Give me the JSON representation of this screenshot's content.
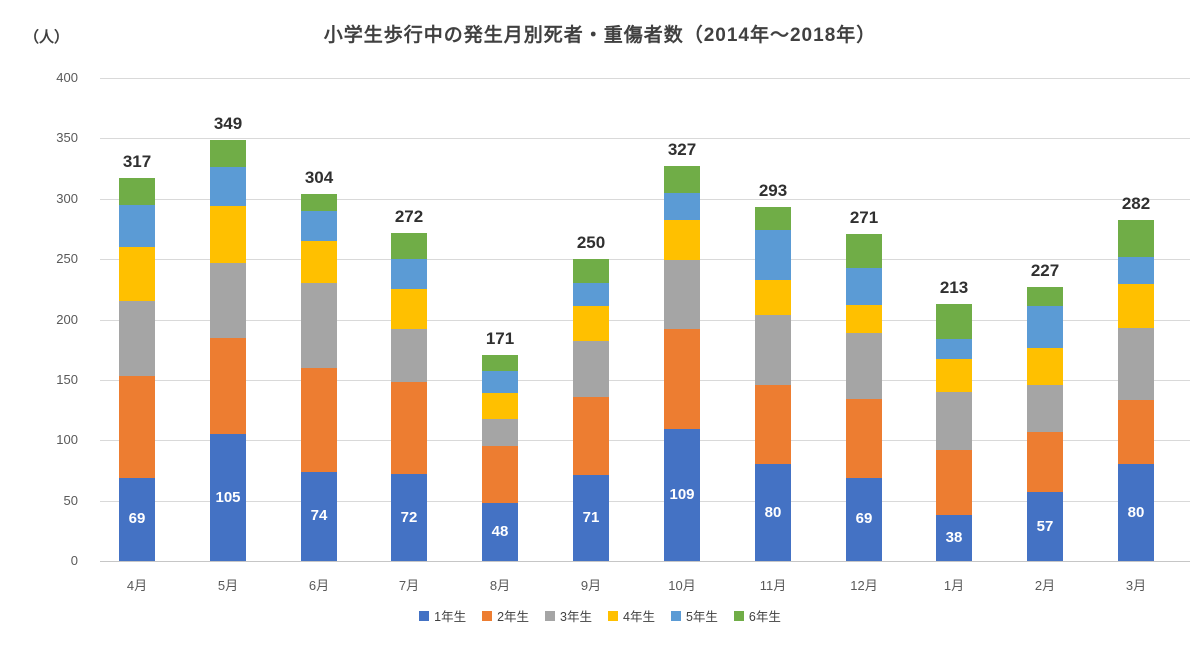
{
  "chart_data": {
    "type": "bar",
    "stacked": true,
    "title": "小学生歩行中の発生月別死者・重傷者数（2014年～2018年）",
    "unit_label": "（人）",
    "categories": [
      "4月",
      "5月",
      "6月",
      "7月",
      "8月",
      "9月",
      "10月",
      "11月",
      "12月",
      "1月",
      "2月",
      "3月"
    ],
    "totals": [
      317,
      349,
      304,
      272,
      171,
      250,
      327,
      293,
      271,
      213,
      227,
      282
    ],
    "series": [
      {
        "name": "1年生",
        "color": "#4472C4",
        "values": [
          69,
          105,
          74,
          72,
          48,
          71,
          109,
          80,
          69,
          38,
          57,
          80
        ]
      },
      {
        "name": "2年生",
        "color": "#ED7D31",
        "values": [
          84,
          80,
          86,
          76,
          47,
          65,
          83,
          66,
          65,
          54,
          50,
          53
        ]
      },
      {
        "name": "3年生",
        "color": "#A5A5A5",
        "values": [
          62,
          62,
          70,
          44,
          23,
          46,
          57,
          58,
          55,
          48,
          39,
          60
        ]
      },
      {
        "name": "4年生",
        "color": "#FFC000",
        "values": [
          45,
          47,
          35,
          33,
          21,
          29,
          33,
          29,
          23,
          27,
          30,
          36
        ]
      },
      {
        "name": "5年生",
        "color": "#5B9BD5",
        "values": [
          35,
          32,
          25,
          25,
          18,
          19,
          23,
          41,
          31,
          17,
          35,
          23
        ]
      },
      {
        "name": "6年生",
        "color": "#70AD47",
        "values": [
          22,
          23,
          14,
          22,
          14,
          20,
          22,
          19,
          28,
          29,
          16,
          30
        ]
      }
    ],
    "value_labels_on_series": "1年生",
    "y_axis": {
      "min": 0,
      "max": 400,
      "step": 50,
      "tick_labels": [
        "0",
        "50",
        "100",
        "150",
        "200",
        "250",
        "300",
        "350",
        "400"
      ]
    },
    "grid": true,
    "legend_position": "bottom"
  }
}
